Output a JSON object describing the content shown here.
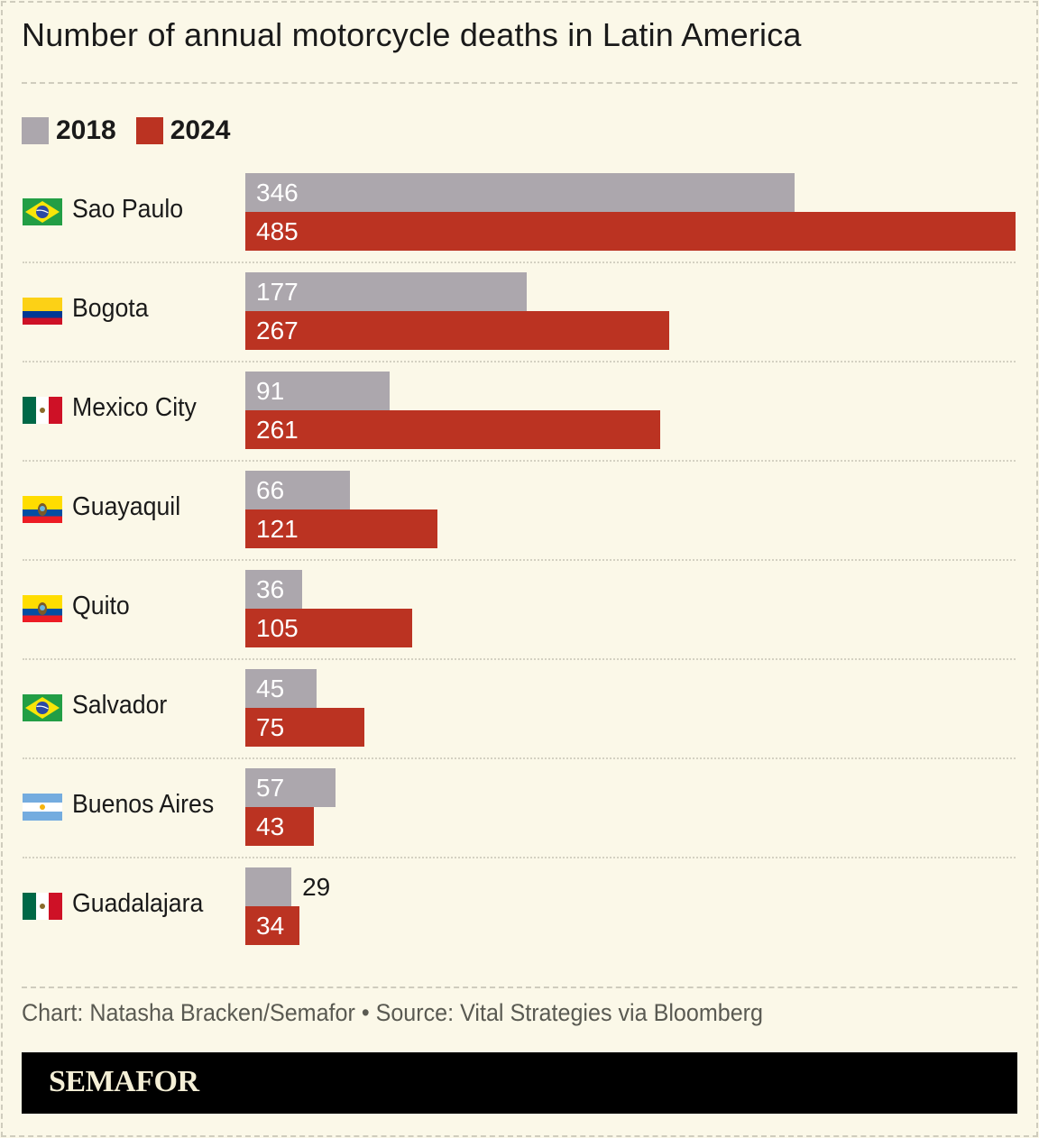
{
  "title": "Number of annual motorcycle deaths in Latin America",
  "source": "Chart: Natasha Bracken/Semafor • Source: Vital Strategies via Bloomberg",
  "brand": "SEMAFOR",
  "chart_data": {
    "type": "bar",
    "orientation": "horizontal",
    "title": "Number of annual motorcycle deaths in Latin America",
    "categories": [
      "Sao Paulo",
      "Bogota",
      "Mexico City",
      "Guayaquil",
      "Quito",
      "Salvador",
      "Buenos Aires",
      "Guadalajara"
    ],
    "flags": [
      "brazil",
      "colombia",
      "mexico",
      "ecuador",
      "ecuador",
      "brazil",
      "argentina",
      "mexico"
    ],
    "series": [
      {
        "name": "2018",
        "color": "#aca7ad",
        "values": [
          346,
          177,
          91,
          66,
          36,
          45,
          57,
          29
        ]
      },
      {
        "name": "2024",
        "color": "#bb3322",
        "values": [
          485,
          267,
          261,
          121,
          105,
          75,
          43,
          34
        ]
      }
    ],
    "xlim": [
      0,
      485
    ],
    "legend": "top-left",
    "grid": false
  }
}
